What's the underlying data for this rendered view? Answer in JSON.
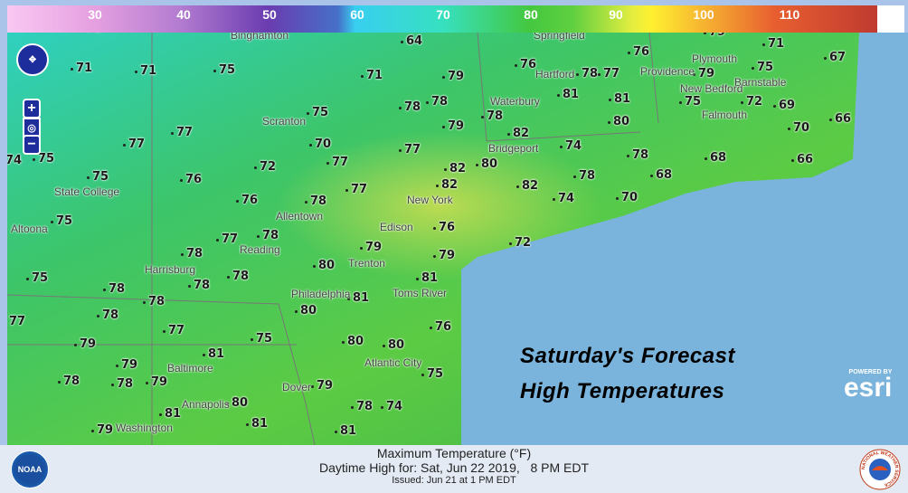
{
  "legend": {
    "ticks": [
      "30",
      "40",
      "50",
      "60",
      "70",
      "80",
      "90",
      "100",
      "110"
    ],
    "units": "°F"
  },
  "title": {
    "line1": "Saturday's Forecast",
    "line2": "High Temperatures"
  },
  "footer": {
    "line1": "Maximum Temperature (°F)",
    "line2": "Daytime High for: Sat, Jun 22 2019,   8 PM EDT",
    "line3": "Issued: Jun 21 at 1 PM EDT"
  },
  "esri": {
    "powered": "POWERED BY",
    "name": "esri"
  },
  "logos": {
    "left": "NOAA",
    "right": "NATIONAL WEATHER SERVICE"
  },
  "controls": {
    "zoom_in": "+",
    "zoom_out": "−"
  },
  "colors": {
    "ocean": "#7ab4dc",
    "land": "#4cc24a",
    "cool": "#34d8c8"
  },
  "temperatures": [
    "72",
    "64",
    "79",
    "71",
    "67",
    "71",
    "71",
    "75",
    "71",
    "79",
    "76",
    "78",
    "77",
    "76",
    "79",
    "75",
    "78",
    "78",
    "81",
    "81",
    "75",
    "72",
    "69",
    "77",
    "77",
    "75",
    "70",
    "79",
    "78",
    "80",
    "70",
    "66",
    "74",
    "75",
    "72",
    "77",
    "77",
    "82",
    "74",
    "80",
    "82",
    "78",
    "68",
    "66",
    "75",
    "76",
    "77",
    "82",
    "82",
    "78",
    "68",
    "74",
    "70",
    "76",
    "78",
    "75",
    "76",
    "72",
    "77",
    "78",
    "78",
    "79",
    "79",
    "80",
    "75",
    "78",
    "78",
    "78",
    "78",
    "81",
    "81",
    "80",
    "77",
    "78",
    "77",
    "76",
    "75",
    "80",
    "80",
    "79",
    "79",
    "81",
    "75",
    "78",
    "78",
    "79",
    "79",
    "80",
    "81",
    "78",
    "74",
    "81",
    "79",
    "81"
  ],
  "cities": [
    "Binghamton",
    "Springfield",
    "Plymouth",
    "Hartford",
    "Providence",
    "Barnstable",
    "New Bedford",
    "Falmouth",
    "Waterbury",
    "Scranton",
    "Bridgeport",
    "State College",
    "New York",
    "Allentown",
    "Altoona",
    "Edison",
    "Reading",
    "Harrisburg",
    "Trenton",
    "Philadelphia",
    "Toms River",
    "Atlantic City",
    "Baltimore",
    "Dover",
    "Annapolis",
    "Washington"
  ]
}
